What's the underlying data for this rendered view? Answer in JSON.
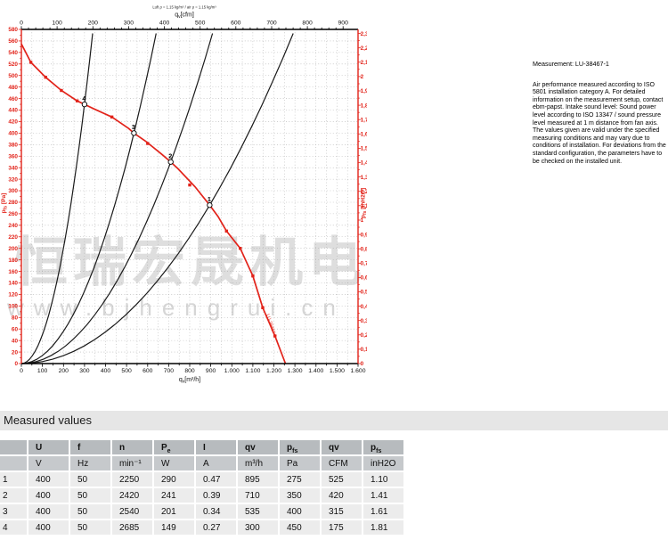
{
  "watermark": {
    "line1": "恒瑞宏晟机电",
    "line2": "www.bjhengrui.cn"
  },
  "measurement": {
    "title": "Measurement: LU-38467-1",
    "body": "Air performance measured according to ISO 5801 installation category A. For detailed information on the measurement setup, contact ebm-papst. Intake sound level: Sound power level according to ISO 13347 / sound pressure level measured at 1 m distance from fan axis. The values given are valid under the specified measuring conditions and may vary due to conditions of installation. For deviations from the standard configuration, the parameters have to be checked on the installed unit."
  },
  "chart_data": {
    "type": "line",
    "title_small": "Luft ρ = 1.15 kg/m³ / air ρ = 1.15 kg/m³",
    "curve_end_label": "LU-38467-1",
    "colors": {
      "accent_red": "#e2231a",
      "curve_black": "#1a1a1a",
      "grid": "#a8a8a8"
    },
    "axes": {
      "bottom": {
        "label_main": "q",
        "label_sub": "v",
        "label_rest": "[m³/h]",
        "min": 0,
        "max": 1600,
        "major_step": 100,
        "minor_step": 50,
        "tick_labels": [
          "0",
          "100",
          "200",
          "300",
          "400",
          "500",
          "600",
          "700",
          "800",
          "900",
          "1.000",
          "1.100",
          "1.200",
          "1.300",
          "1.400",
          "1.500",
          "1.600"
        ]
      },
      "top": {
        "label_main": "q",
        "label_sub": "v",
        "label_rest": "[cfm]",
        "min": 0,
        "max": 900,
        "major_step": 100,
        "minor_step": 20,
        "cfm_to_m3h": 1.699
      },
      "left": {
        "label_main": "p",
        "label_sub": "fs",
        "label_rest": " [Pa]",
        "min": 0,
        "max": 580,
        "major_step": 20,
        "minor_step": 10
      },
      "right": {
        "label_main": "p",
        "label_sub": "fs",
        "label_rest": " [inH2O]",
        "min": 0,
        "max": 2.3,
        "major_step": 0.1,
        "minor_step": 0.05,
        "inh2o_to_pa": 249.089
      }
    },
    "grid": {
      "h_step_pa": 20,
      "v_step_m3h": 50,
      "style": "dotted"
    },
    "fan_curve": {
      "name": "LU-38467-1",
      "points": [
        [
          0,
          555
        ],
        [
          45,
          523
        ],
        [
          115,
          497
        ],
        [
          190,
          474
        ],
        [
          265,
          456
        ],
        [
          300,
          450
        ],
        [
          345,
          442
        ],
        [
          430,
          428
        ],
        [
          510,
          408
        ],
        [
          535,
          400
        ],
        [
          590,
          386
        ],
        [
          665,
          364
        ],
        [
          710,
          350
        ],
        [
          745,
          338
        ],
        [
          825,
          307
        ],
        [
          895,
          275
        ],
        [
          935,
          255
        ],
        [
          975,
          230
        ],
        [
          1040,
          200
        ],
        [
          1100,
          152
        ],
        [
          1147,
          97
        ],
        [
          1205,
          48
        ],
        [
          1255,
          0
        ]
      ]
    },
    "marker_points": [
      [
        45,
        523
      ],
      [
        115,
        497
      ],
      [
        190,
        474
      ],
      [
        265,
        456
      ],
      [
        430,
        428
      ],
      [
        600,
        382
      ],
      [
        800,
        310
      ],
      [
        975,
        230
      ],
      [
        1040,
        200
      ],
      [
        1100,
        152
      ],
      [
        1147,
        97
      ],
      [
        1205,
        48
      ]
    ],
    "operating_points": [
      {
        "label": "1",
        "qv": 895,
        "pa": 275
      },
      {
        "label": "2",
        "qv": 710,
        "pa": 350
      },
      {
        "label": "3",
        "qv": 535,
        "pa": 400
      },
      {
        "label": "4",
        "qv": 300,
        "pa": 450
      }
    ],
    "system_curves": {
      "description": "parabolic load lines from origin through each operating point",
      "top_pa": 573
    }
  },
  "table": {
    "section_title": "Measured values",
    "headers": [
      {
        "main": ""
      },
      {
        "main": "U"
      },
      {
        "main": "f"
      },
      {
        "main": "n"
      },
      {
        "main": "P",
        "sub": "e"
      },
      {
        "main": "I"
      },
      {
        "main": "qv"
      },
      {
        "main": "p",
        "sub": "fs"
      },
      {
        "main": "qv"
      },
      {
        "main": "p",
        "sub": "fs"
      }
    ],
    "units": [
      "",
      "V",
      "Hz",
      "min⁻¹",
      "W",
      "A",
      "m³/h",
      "Pa",
      "CFM",
      "inH2O"
    ],
    "rows": [
      [
        "1",
        "400",
        "50",
        "2250",
        "290",
        "0.47",
        "895",
        "275",
        "525",
        "1.10"
      ],
      [
        "2",
        "400",
        "50",
        "2420",
        "241",
        "0.39",
        "710",
        "350",
        "420",
        "1.41"
      ],
      [
        "3",
        "400",
        "50",
        "2540",
        "201",
        "0.34",
        "535",
        "400",
        "315",
        "1.61"
      ],
      [
        "4",
        "400",
        "50",
        "2685",
        "149",
        "0.27",
        "300",
        "450",
        "175",
        "1.81"
      ]
    ]
  }
}
